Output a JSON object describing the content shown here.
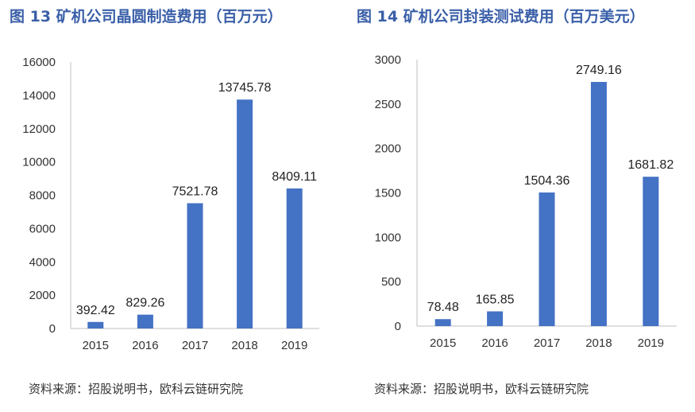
{
  "colors": {
    "bar": "#4472c4",
    "title": "#3a5fa8",
    "axis": "#bfbfbf"
  },
  "chart_data": [
    {
      "type": "bar",
      "title": "图 13 矿机公司晶圆制造费用（百万元）",
      "source": "资料来源：招股说明书，欧科云链研究院",
      "categories": [
        "2015",
        "2016",
        "2017",
        "2018",
        "2019"
      ],
      "values": [
        392.42,
        829.26,
        7521.78,
        13745.78,
        8409.11
      ],
      "value_labels": [
        "392.42",
        "829.26",
        "7521.78",
        "13745.78",
        "8409.11"
      ],
      "ylim": [
        0,
        16000
      ],
      "yticks": [
        "0",
        "2000",
        "4000",
        "6000",
        "8000",
        "10000",
        "12000",
        "14000",
        "16000"
      ],
      "grid": false,
      "xlabel": "",
      "ylabel": ""
    },
    {
      "type": "bar",
      "title": "图 14 矿机公司封装测试费用（百万美元）",
      "source": "资料来源：招股说明书，欧科云链研究院",
      "categories": [
        "2015",
        "2016",
        "2017",
        "2018",
        "2019"
      ],
      "values": [
        78.48,
        165.85,
        1504.36,
        2749.16,
        1681.82
      ],
      "value_labels": [
        "78.48",
        "165.85",
        "1504.36",
        "2749.16",
        "1681.82"
      ],
      "ylim": [
        0,
        3000
      ],
      "yticks": [
        "0",
        "500",
        "1000",
        "1500",
        "2000",
        "2500",
        "3000"
      ],
      "grid": false,
      "xlabel": "",
      "ylabel": ""
    }
  ]
}
